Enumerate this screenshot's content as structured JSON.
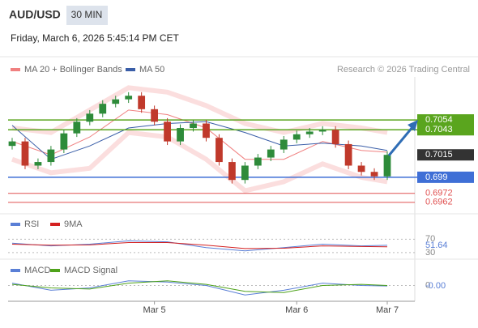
{
  "header": {
    "symbol": "AUD/USD",
    "timeframe": "30 MIN",
    "timestamp": "Friday, March 6, 2026 5:45:14 PM CET"
  },
  "chart_data": [
    {
      "type": "candlestick",
      "credit": "Research © 2026 Trading Central",
      "categories": [
        null,
        null,
        null,
        null,
        null,
        null,
        null,
        null,
        null,
        null,
        null,
        "Mar 5",
        null,
        null,
        null,
        null,
        null,
        null,
        null,
        null,
        null,
        null,
        "Mar 6",
        null,
        null,
        null,
        null,
        null,
        null,
        "Mar 7"
      ],
      "open": [
        0.7025,
        0.703,
        0.7003,
        0.7007,
        0.7021,
        0.7039,
        0.7052,
        0.7061,
        0.7072,
        0.7077,
        0.7081,
        0.7066,
        0.7052,
        0.703,
        0.7045,
        0.705,
        0.7034,
        0.7007,
        0.6987,
        0.7003,
        0.7012,
        0.7021,
        0.7032,
        0.7038,
        0.7041,
        0.7043,
        0.7027,
        0.7003,
        0.6996,
        0.6991
      ],
      "high": [
        0.7034,
        0.7034,
        0.7011,
        0.7025,
        0.7043,
        0.7056,
        0.7065,
        0.7076,
        0.7081,
        0.7085,
        0.7085,
        0.707,
        0.7056,
        0.7049,
        0.7054,
        0.7054,
        0.7038,
        0.7011,
        0.7007,
        0.7016,
        0.7025,
        0.7036,
        0.7042,
        0.7045,
        0.7047,
        0.7047,
        0.7031,
        0.7007,
        0.7,
        0.7019
      ],
      "low": [
        0.7021,
        0.6999,
        0.6999,
        0.7003,
        0.7017,
        0.7035,
        0.7048,
        0.7057,
        0.7068,
        0.7073,
        0.7062,
        0.7048,
        0.7026,
        0.7026,
        0.7041,
        0.703,
        0.7003,
        0.6983,
        0.6983,
        0.6999,
        0.7008,
        0.7017,
        0.7028,
        0.7034,
        0.7037,
        0.7023,
        0.6999,
        0.6992,
        0.6987,
        0.6987
      ],
      "close": [
        0.703,
        0.7003,
        0.7007,
        0.7021,
        0.7039,
        0.7052,
        0.7061,
        0.7072,
        0.7077,
        0.7081,
        0.7066,
        0.7052,
        0.703,
        0.7045,
        0.705,
        0.7034,
        0.7007,
        0.6987,
        0.7003,
        0.7012,
        0.7021,
        0.7032,
        0.7038,
        0.7041,
        0.7043,
        0.7027,
        0.7003,
        0.6996,
        0.6991,
        0.7015
      ],
      "up_color": "#2e8b3a",
      "down_color": "#c0392b",
      "ylim": [
        0.6951,
        0.7102
      ],
      "overlays": {
        "x": [
          0,
          3,
          6,
          9,
          12,
          15,
          18,
          21,
          24,
          27,
          29
        ],
        "series": [
          {
            "name": "MA 20 + Bollinger Bands",
            "color": "#f08080",
            "band_color": "#f9c8c8",
            "values": [
              0.703,
              0.7015,
              0.7035,
              0.7065,
              0.706,
              0.7045,
              0.701,
              0.701,
              0.703,
              0.702,
              0.7018
            ],
            "upper": [
              0.7045,
              0.704,
              0.7065,
              0.709,
              0.7085,
              0.707,
              0.705,
              0.704,
              0.705,
              0.7045,
              0.704
            ],
            "lower": [
              0.701,
              0.6995,
              0.7,
              0.704,
              0.7035,
              0.701,
              0.6975,
              0.6985,
              0.7005,
              0.699,
              0.6985
            ]
          },
          {
            "name": "MA 50",
            "color": "#3a5ea8",
            "values": [
              0.7048,
              0.701,
              0.7025,
              0.7045,
              0.705,
              0.7052,
              0.704,
              0.7025,
              0.7028,
              0.7025,
              0.702
            ]
          }
        ]
      },
      "levels": [
        {
          "value": 0.7054,
          "color": "#5aa51e",
          "style": "box"
        },
        {
          "value": 0.7043,
          "color": "#5aa51e",
          "style": "box"
        },
        {
          "value": 0.699,
          "color": "#3f6fd6",
          "style": "box"
        },
        {
          "value": 0.6972,
          "color": "#e05050",
          "style": "text"
        },
        {
          "value": 0.6962,
          "color": "#e05050",
          "style": "text"
        }
      ]
    },
    {
      "type": "line",
      "x": [
        0,
        3,
        6,
        9,
        12,
        15,
        18,
        21,
        24,
        27,
        29
      ],
      "ylim": [
        20,
        95
      ],
      "yticks": [
        70,
        30
      ],
      "series": [
        {
          "name": "RSI",
          "color": "#5a7fd6",
          "values": [
            58,
            50,
            55,
            65,
            62,
            45,
            35,
            45,
            55,
            50,
            51.64
          ]
        },
        {
          "name": "9MA",
          "color": "#d42020",
          "values": [
            55,
            52,
            53,
            60,
            60,
            52,
            42,
            43,
            50,
            48,
            47
          ]
        }
      ]
    },
    {
      "type": "line",
      "x": [
        0,
        3,
        6,
        9,
        12,
        15,
        18,
        21,
        24,
        27,
        29
      ],
      "ylim": [
        -0.0012,
        0.001
      ],
      "yticks": [
        0
      ],
      "series": [
        {
          "name": "MACD",
          "color": "#5a7fd6",
          "values": [
            0.0002,
            -0.0004,
            -0.0002,
            0.0004,
            0.0003,
            0.0,
            -0.0008,
            -0.0004,
            0.0002,
            0.0,
            -4e-05
          ],
          "value_labels": [
            null,
            null,
            null,
            null,
            null,
            null,
            null,
            null,
            null,
            null,
            "-0.00"
          ]
        },
        {
          "name": "MACD Signal",
          "color": "#4ea21a",
          "values": [
            0.0001,
            -0.0002,
            -0.0003,
            0.0002,
            0.0004,
            0.0001,
            -0.0005,
            -0.0006,
            0.0,
            0.0001,
            0.0
          ]
        }
      ]
    }
  ]
}
